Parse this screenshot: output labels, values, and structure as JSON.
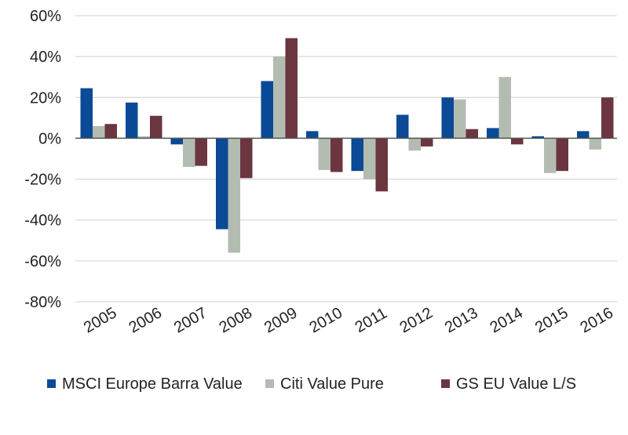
{
  "chart_data": {
    "type": "bar",
    "categories": [
      "2005",
      "2006",
      "2007",
      "2008",
      "2009",
      "2010",
      "2011",
      "2012",
      "2013",
      "2014",
      "2015",
      "2016"
    ],
    "series": [
      {
        "name": "MSCI Europe Barra Value",
        "color": "#0a4a96",
        "values": [
          24.5,
          17.5,
          -3,
          -44.5,
          28,
          3.5,
          -16,
          11.5,
          20,
          5,
          1,
          3.5
        ]
      },
      {
        "name": "Citi Value Pure",
        "color": "#b3bcb0",
        "values": [
          6,
          1,
          -14,
          -56,
          40,
          -15.5,
          -20,
          -6,
          19,
          30,
          -17,
          -5.5
        ]
      },
      {
        "name": "GS EU Value L/S",
        "color": "#6b3640",
        "values": [
          7,
          11,
          -13.5,
          -19.5,
          49,
          -16.5,
          -26,
          -4,
          4.5,
          -3,
          -16,
          20
        ]
      }
    ],
    "yticks": [
      "60%",
      "40%",
      "20%",
      "0%",
      "-20%",
      "-40%",
      "-60%",
      "-80%"
    ],
    "ylim": [
      -80,
      60
    ],
    "grid": "horizontal",
    "legend": "bottom"
  }
}
